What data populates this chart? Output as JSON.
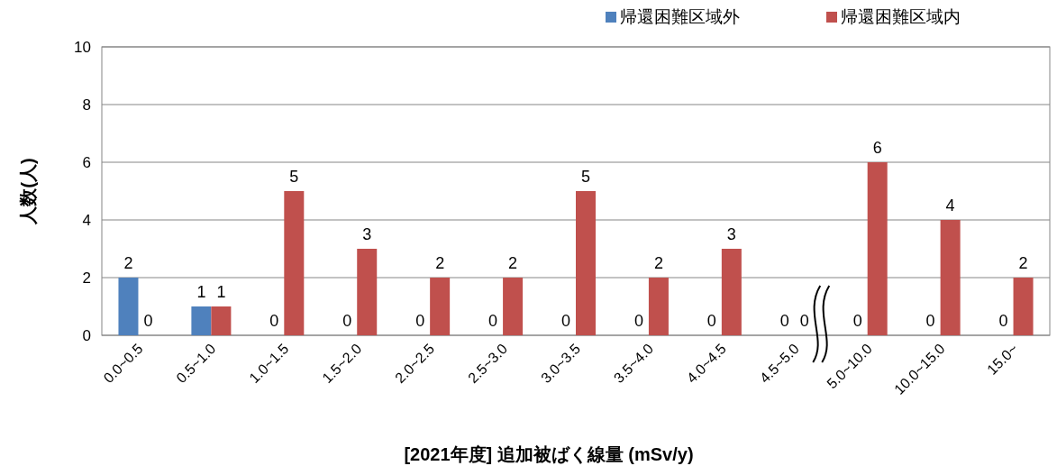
{
  "chart_data": {
    "type": "bar",
    "xlabel": "[2021年度] 追加被ばく線量 (mSv/y)",
    "ylabel": "人数(人)",
    "categories": [
      "0.0~0.5",
      "0.5~1.0",
      "1.0~1.5",
      "1.5~2.0",
      "2.0~2.5",
      "2.5~3.0",
      "3.0~3.5",
      "3.5~4.0",
      "4.0~4.5",
      "4.5~5.0",
      "5.0~10.0",
      "10.0~15.0",
      "15.0~"
    ],
    "series": [
      {
        "name": "帰還困難区域外",
        "color": "#4f81bd",
        "values": [
          2,
          1,
          0,
          0,
          0,
          0,
          0,
          0,
          0,
          0,
          0,
          0,
          0
        ]
      },
      {
        "name": "帰還困難区域内",
        "color": "#c0504d",
        "values": [
          0,
          1,
          5,
          3,
          2,
          2,
          5,
          2,
          3,
          0,
          6,
          4,
          2
        ]
      }
    ],
    "ylim": [
      0,
      10
    ],
    "yticks": [
      0,
      2,
      4,
      6,
      8,
      10
    ],
    "grid": "y",
    "legend": "top right",
    "data_labels": true
  }
}
